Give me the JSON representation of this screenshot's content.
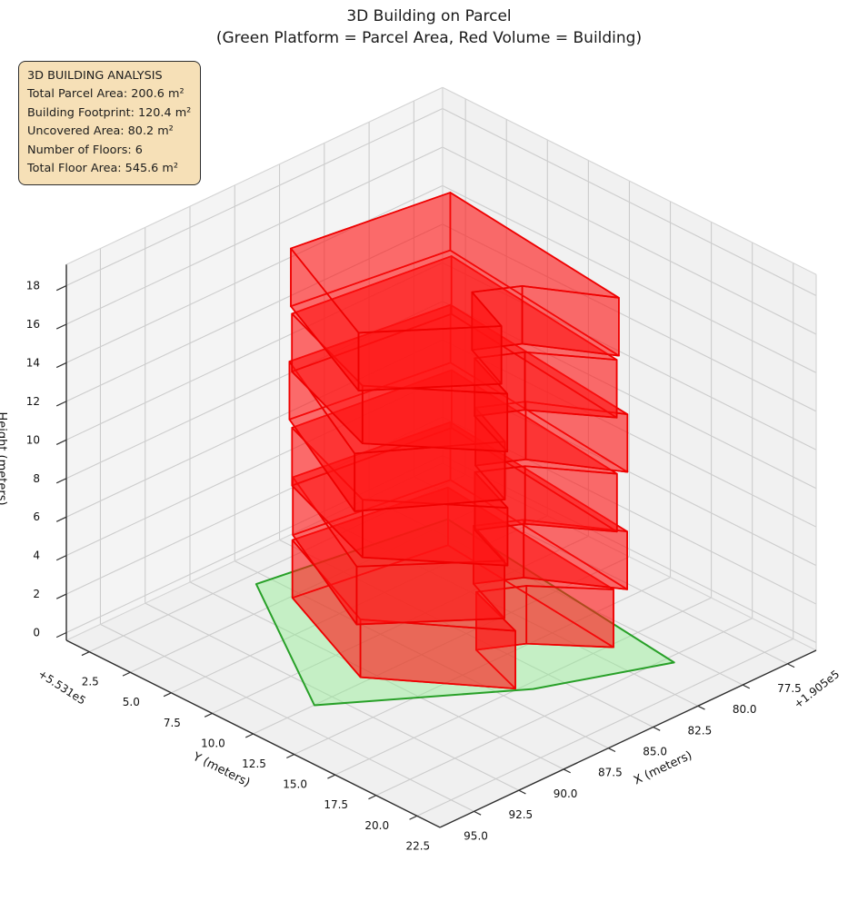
{
  "title": "3D Building on Parcel",
  "subtitle": "(Green Platform = Parcel Area, Red Volume = Building)",
  "info_box": {
    "title": "3D BUILDING ANALYSIS",
    "lines": [
      "Total Parcel Area: 200.6 m²",
      "Building Footprint: 120.4 m²",
      "Uncovered Area: 80.2 m²",
      "Number of Floors: 6",
      "Total Floor Area: 545.6 m²"
    ],
    "bg_color": "#f5deb3"
  },
  "axes": {
    "x": {
      "label": "X (meters)",
      "offset_text": "+1.905e5",
      "ticks": [
        "77.5",
        "80.0",
        "82.5",
        "85.0",
        "87.5",
        "90.0",
        "92.5",
        "95.0"
      ]
    },
    "y": {
      "label": "Y (meters)",
      "offset_text": "+5.531e5",
      "ticks": [
        "2.5",
        "5.0",
        "7.5",
        "10.0",
        "12.5",
        "15.0",
        "17.5",
        "20.0",
        "22.5"
      ]
    },
    "z": {
      "label": "Height (meters)",
      "ticks": [
        "0",
        "2",
        "4",
        "6",
        "8",
        "10",
        "12",
        "14",
        "16",
        "18"
      ]
    }
  },
  "chart_data": {
    "type": "3d-building",
    "title": "3D Building on Parcel",
    "stats": {
      "total_parcel_area_m2": 200.6,
      "building_footprint_m2": 120.4,
      "uncovered_area_m2": 80.2,
      "num_floors": 6,
      "total_floor_area_m2": 545.6
    },
    "view": {
      "xlim": [
        75.9,
        96.9
      ],
      "ylim": [
        1.1,
        23.9
      ],
      "zlim": [
        -0.4,
        19.1
      ],
      "x_offset_value": "+1.905e5",
      "y_offset_value": "+5.531e5"
    },
    "parcel": {
      "z": 0,
      "polygon_xy": [
        [
          88.65,
          3.67
        ],
        [
          93.94,
          13.0
        ],
        [
          86.71,
          18.44
        ],
        [
          81.13,
          20.95
        ],
        [
          79.41,
          5.26
        ]
      ],
      "fill": "#90ee90",
      "edge": "#28a028"
    },
    "building": {
      "floor_height_m": 3,
      "fill": "#ff1414",
      "edge": "#ee0000",
      "floors": [
        {
          "z0": 0,
          "z1": 3,
          "footprint_xy": [
            [
              88.4,
              5.6
            ],
            [
              91.0,
              12.6
            ],
            [
              87.2,
              17.9
            ],
            [
              86.1,
              14.3
            ],
            [
              84.3,
              15.4
            ],
            [
              82.0,
              18.2
            ],
            [
              80.9,
              6.9
            ]
          ]
        },
        {
          "z0": 3,
          "z1": 6,
          "footprint_xy": [
            [
              88.1,
              5.3
            ],
            [
              91.4,
              12.8
            ],
            [
              86.8,
              16.8
            ],
            [
              85.7,
              13.7
            ],
            [
              83.9,
              14.8
            ],
            [
              81.6,
              18.6
            ],
            [
              80.4,
              6.5
            ]
          ]
        },
        {
          "z0": 6,
          "z1": 9,
          "footprint_xy": [
            [
              88.6,
              5.8
            ],
            [
              90.7,
              12.4
            ],
            [
              87.0,
              17.2
            ],
            [
              85.9,
              14.0
            ],
            [
              84.1,
              15.1
            ],
            [
              81.9,
              18.3
            ],
            [
              80.7,
              6.9
            ]
          ]
        },
        {
          "z0": 9,
          "z1": 12,
          "footprint_xy": [
            [
              88.2,
              5.2
            ],
            [
              91.6,
              12.9
            ],
            [
              86.6,
              16.6
            ],
            [
              85.5,
              13.6
            ],
            [
              83.7,
              14.7
            ],
            [
              81.5,
              18.5
            ],
            [
              80.3,
              6.4
            ]
          ]
        },
        {
          "z0": 12,
          "z1": 15,
          "footprint_xy": [
            [
              88.7,
              5.9
            ],
            [
              90.8,
              12.5
            ],
            [
              87.1,
              17.3
            ],
            [
              86.0,
              14.1
            ],
            [
              84.2,
              15.2
            ],
            [
              82.0,
              18.4
            ],
            [
              80.8,
              7.0
            ]
          ]
        },
        {
          "z0": 15,
          "z1": 18,
          "footprint_xy": [
            [
              88.3,
              5.4
            ],
            [
              91.2,
              12.7
            ],
            [
              86.7,
              16.5
            ],
            [
              85.6,
              13.5
            ],
            [
              83.8,
              14.6
            ],
            [
              81.7,
              18.2
            ],
            [
              80.5,
              6.6
            ]
          ]
        }
      ]
    },
    "style": {
      "pane_floor": "#f0f0f0",
      "pane_wall_left": "#f4f4f4",
      "pane_wall_right": "#f1f1f1",
      "grid_color": "#cccccc",
      "spine_color": "#2e2e2e",
      "tick_label_color": "#111111"
    }
  }
}
